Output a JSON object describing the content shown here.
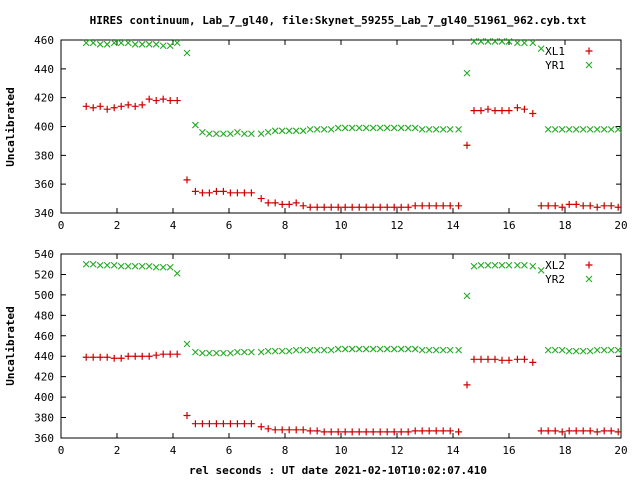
{
  "colors": {
    "red": "#cc0000",
    "green": "#22aa22",
    "frame": "#000000",
    "background": "#ffffff"
  },
  "title": "HIRES continuum, Lab_7_gl40, file:Skynet_59255_Lab_7_gl40_51961_962.cyb.txt",
  "xlabel": "rel seconds : UT date 2021-02-10T10:02:07.410",
  "chart_data": [
    {
      "type": "scatter",
      "title": "HIRES continuum, Lab_7_gl40, file:Skynet_59255_Lab_7_gl40_51961_962.cyb.txt",
      "xlabel": "",
      "ylabel": "Uncalibrated",
      "xlim": [
        0,
        20
      ],
      "ylim": [
        340,
        460
      ],
      "xticks": [
        0,
        2,
        4,
        6,
        8,
        10,
        12,
        14,
        16,
        18,
        20
      ],
      "yticks": [
        340,
        360,
        380,
        400,
        420,
        440,
        460
      ],
      "grid": false,
      "legend": "top-right",
      "series": [
        {
          "name": "XL1",
          "marker": "plus",
          "color": "#cc0000",
          "x": [
            0.9,
            1.15,
            1.4,
            1.65,
            1.9,
            2.15,
            2.4,
            2.65,
            2.9,
            3.15,
            3.4,
            3.65,
            3.9,
            4.15,
            4.5,
            4.8,
            5.05,
            5.3,
            5.55,
            5.8,
            6.05,
            6.3,
            6.55,
            6.8,
            7.15,
            7.4,
            7.65,
            7.9,
            8.15,
            8.4,
            8.65,
            8.9,
            9.15,
            9.4,
            9.65,
            9.9,
            10.15,
            10.4,
            10.65,
            10.9,
            11.15,
            11.4,
            11.65,
            11.9,
            12.15,
            12.4,
            12.65,
            12.9,
            13.15,
            13.4,
            13.65,
            13.9,
            14.2,
            14.5,
            14.75,
            15.0,
            15.25,
            15.5,
            15.75,
            16.0,
            16.3,
            16.55,
            16.85,
            17.15,
            17.4,
            17.65,
            17.9,
            18.15,
            18.4,
            18.65,
            18.9,
            19.15,
            19.4,
            19.65,
            19.9
          ],
          "y": [
            414,
            413,
            414,
            412,
            413,
            414,
            415,
            414,
            415,
            419,
            418,
            419,
            418,
            418,
            363,
            355,
            354,
            354,
            355,
            355,
            354,
            354,
            354,
            354,
            350,
            347,
            347,
            346,
            346,
            347,
            345,
            344,
            344,
            344,
            344,
            344,
            344,
            344,
            344,
            344,
            344,
            344,
            344,
            344,
            344,
            344,
            345,
            345,
            345,
            345,
            345,
            345,
            345,
            387,
            411,
            411,
            412,
            411,
            411,
            411,
            413,
            412,
            409,
            345,
            345,
            345,
            344,
            346,
            346,
            345,
            345,
            344,
            345,
            345,
            344
          ]
        },
        {
          "name": "YR1",
          "marker": "cross",
          "color": "#22aa22",
          "x": [
            0.9,
            1.15,
            1.4,
            1.65,
            1.9,
            2.15,
            2.4,
            2.65,
            2.9,
            3.15,
            3.4,
            3.65,
            3.9,
            4.15,
            4.5,
            4.8,
            5.05,
            5.3,
            5.55,
            5.8,
            6.05,
            6.3,
            6.55,
            6.8,
            7.15,
            7.4,
            7.65,
            7.9,
            8.15,
            8.4,
            8.65,
            8.9,
            9.15,
            9.4,
            9.65,
            9.9,
            10.15,
            10.4,
            10.65,
            10.9,
            11.15,
            11.4,
            11.65,
            11.9,
            12.15,
            12.4,
            12.65,
            12.9,
            13.15,
            13.4,
            13.65,
            13.9,
            14.2,
            14.5,
            14.75,
            15.0,
            15.25,
            15.5,
            15.75,
            16.0,
            16.3,
            16.55,
            16.85,
            17.15,
            17.4,
            17.65,
            17.9,
            18.15,
            18.4,
            18.65,
            18.9,
            19.15,
            19.4,
            19.65,
            19.9
          ],
          "y": [
            458,
            458,
            457,
            457,
            458,
            458,
            458,
            457,
            457,
            457,
            457,
            456,
            456,
            458,
            451,
            401,
            396,
            395,
            395,
            395,
            395,
            396,
            395,
            395,
            395,
            396,
            397,
            397,
            397,
            397,
            397,
            398,
            398,
            398,
            398,
            399,
            399,
            399,
            399,
            399,
            399,
            399,
            399,
            399,
            399,
            399,
            399,
            398,
            398,
            398,
            398,
            398,
            398,
            437,
            459,
            459,
            459,
            459,
            459,
            459,
            458,
            458,
            458,
            454,
            398,
            398,
            398,
            398,
            398,
            398,
            398,
            398,
            398,
            398,
            398
          ]
        }
      ]
    },
    {
      "type": "scatter",
      "title": "",
      "xlabel": "rel seconds : UT date 2021-02-10T10:02:07.410",
      "ylabel": "Uncalibrated",
      "xlim": [
        0,
        20
      ],
      "ylim": [
        360,
        540
      ],
      "xticks": [
        0,
        2,
        4,
        6,
        8,
        10,
        12,
        14,
        16,
        18,
        20
      ],
      "yticks": [
        360,
        380,
        400,
        420,
        440,
        460,
        480,
        500,
        520,
        540
      ],
      "grid": false,
      "legend": "top-right",
      "series": [
        {
          "name": "XL2",
          "marker": "plus",
          "color": "#cc0000",
          "x": [
            0.9,
            1.15,
            1.4,
            1.65,
            1.9,
            2.15,
            2.4,
            2.65,
            2.9,
            3.15,
            3.4,
            3.65,
            3.9,
            4.15,
            4.5,
            4.8,
            5.05,
            5.3,
            5.55,
            5.8,
            6.05,
            6.3,
            6.55,
            6.8,
            7.15,
            7.4,
            7.65,
            7.9,
            8.15,
            8.4,
            8.65,
            8.9,
            9.15,
            9.4,
            9.65,
            9.9,
            10.15,
            10.4,
            10.65,
            10.9,
            11.15,
            11.4,
            11.65,
            11.9,
            12.15,
            12.4,
            12.65,
            12.9,
            13.15,
            13.4,
            13.65,
            13.9,
            14.2,
            14.5,
            14.75,
            15.0,
            15.25,
            15.5,
            15.75,
            16.0,
            16.3,
            16.55,
            16.85,
            17.15,
            17.4,
            17.65,
            17.9,
            18.15,
            18.4,
            18.65,
            18.9,
            19.15,
            19.4,
            19.65,
            19.9
          ],
          "y": [
            439,
            439,
            439,
            439,
            438,
            438,
            440,
            440,
            440,
            440,
            441,
            442,
            442,
            442,
            382,
            374,
            374,
            374,
            374,
            374,
            374,
            374,
            374,
            374,
            371,
            369,
            368,
            368,
            368,
            368,
            368,
            367,
            367,
            366,
            366,
            366,
            366,
            366,
            366,
            366,
            366,
            366,
            366,
            366,
            366,
            366,
            367,
            367,
            367,
            367,
            367,
            367,
            366,
            412,
            437,
            437,
            437,
            437,
            436,
            436,
            437,
            437,
            434,
            367,
            367,
            367,
            366,
            367,
            367,
            367,
            367,
            366,
            367,
            367,
            366
          ]
        },
        {
          "name": "YR2",
          "marker": "cross",
          "color": "#22aa22",
          "x": [
            0.9,
            1.15,
            1.4,
            1.65,
            1.9,
            2.15,
            2.4,
            2.65,
            2.9,
            3.15,
            3.4,
            3.65,
            3.9,
            4.15,
            4.5,
            4.8,
            5.05,
            5.3,
            5.55,
            5.8,
            6.05,
            6.3,
            6.55,
            6.8,
            7.15,
            7.4,
            7.65,
            7.9,
            8.15,
            8.4,
            8.65,
            8.9,
            9.15,
            9.4,
            9.65,
            9.9,
            10.15,
            10.4,
            10.65,
            10.9,
            11.15,
            11.4,
            11.65,
            11.9,
            12.15,
            12.4,
            12.65,
            12.9,
            13.15,
            13.4,
            13.65,
            13.9,
            14.2,
            14.5,
            14.75,
            15.0,
            15.25,
            15.5,
            15.75,
            16.0,
            16.3,
            16.55,
            16.85,
            17.15,
            17.4,
            17.65,
            17.9,
            18.15,
            18.4,
            18.65,
            18.9,
            19.15,
            19.4,
            19.65,
            19.9
          ],
          "y": [
            530,
            530,
            529,
            529,
            529,
            528,
            528,
            528,
            528,
            528,
            527,
            527,
            527,
            521,
            452,
            444,
            443,
            443,
            443,
            443,
            443,
            444,
            444,
            444,
            444,
            445,
            445,
            445,
            445,
            446,
            446,
            446,
            446,
            446,
            446,
            447,
            447,
            447,
            447,
            447,
            447,
            447,
            447,
            447,
            447,
            447,
            447,
            446,
            446,
            446,
            446,
            446,
            446,
            499,
            528,
            529,
            529,
            529,
            529,
            529,
            529,
            529,
            528,
            524,
            446,
            446,
            446,
            445,
            445,
            445,
            445,
            446,
            446,
            446,
            446
          ]
        }
      ]
    }
  ]
}
